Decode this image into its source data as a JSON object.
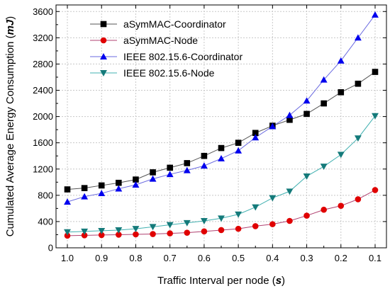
{
  "chart_data": {
    "type": "line",
    "title": "",
    "xlabel": "Traffic Interval per node (",
    "xlabel_var": "s",
    "xlabel_close": ")",
    "ylabel": "Cumulated Average Energy Consumption (",
    "ylabel_var": "mJ",
    "ylabel_close": ")",
    "x_reversed": true,
    "xlim": [
      1.0,
      0.1
    ],
    "ylim": [
      0,
      3700
    ],
    "x": [
      1.0,
      0.95,
      0.9,
      0.85,
      0.8,
      0.75,
      0.7,
      0.65,
      0.6,
      0.55,
      0.5,
      0.45,
      0.4,
      0.35,
      0.3,
      0.25,
      0.2,
      0.15,
      0.1
    ],
    "x_ticks": [
      1.0,
      0.9,
      0.8,
      0.7,
      0.6,
      0.5,
      0.4,
      0.3,
      0.2,
      0.1
    ],
    "x_tick_labels": [
      "1.0",
      "0.9",
      "0.8",
      "0.7",
      "0.6",
      "0.5",
      "0.4",
      "0.3",
      "0.2",
      "0.1"
    ],
    "y_ticks": [
      0,
      400,
      800,
      1200,
      1600,
      2000,
      2400,
      2800,
      3200,
      3600
    ],
    "y_tick_labels": [
      "0",
      "400",
      "800",
      "1200",
      "1600",
      "2000",
      "2400",
      "2800",
      "3200",
      "3600"
    ],
    "grid": true,
    "legend_position": "top-left",
    "series": [
      {
        "name": "aSymMAC-Coordinator",
        "marker": "square",
        "color": "#000000",
        "line_color": "#555555",
        "values": [
          890,
          910,
          950,
          990,
          1040,
          1150,
          1220,
          1290,
          1400,
          1520,
          1600,
          1750,
          1860,
          1950,
          2040,
          2200,
          2370,
          2500,
          2680
        ]
      },
      {
        "name": "aSymMAC-Node",
        "marker": "circle",
        "color": "#e00000",
        "line_color": "#b04070",
        "values": [
          185,
          190,
          195,
          200,
          205,
          210,
          220,
          230,
          250,
          270,
          290,
          330,
          360,
          410,
          490,
          580,
          640,
          740,
          880
        ]
      },
      {
        "name": "IEEE 802.15.6-Coordinator",
        "marker": "triangle-up",
        "color": "#0000ee",
        "line_color": "#6a6ae0",
        "values": [
          700,
          780,
          830,
          900,
          960,
          1050,
          1120,
          1180,
          1250,
          1360,
          1480,
          1680,
          1850,
          2020,
          2240,
          2560,
          2850,
          3200,
          3550
        ]
      },
      {
        "name": "IEEE 802.15.6-Node",
        "marker": "triangle-down",
        "color": "#147a7a",
        "line_color": "#40b0b0",
        "values": [
          240,
          250,
          260,
          270,
          290,
          320,
          350,
          380,
          410,
          450,
          510,
          620,
          760,
          860,
          1090,
          1240,
          1420,
          1670,
          2010
        ]
      }
    ]
  }
}
